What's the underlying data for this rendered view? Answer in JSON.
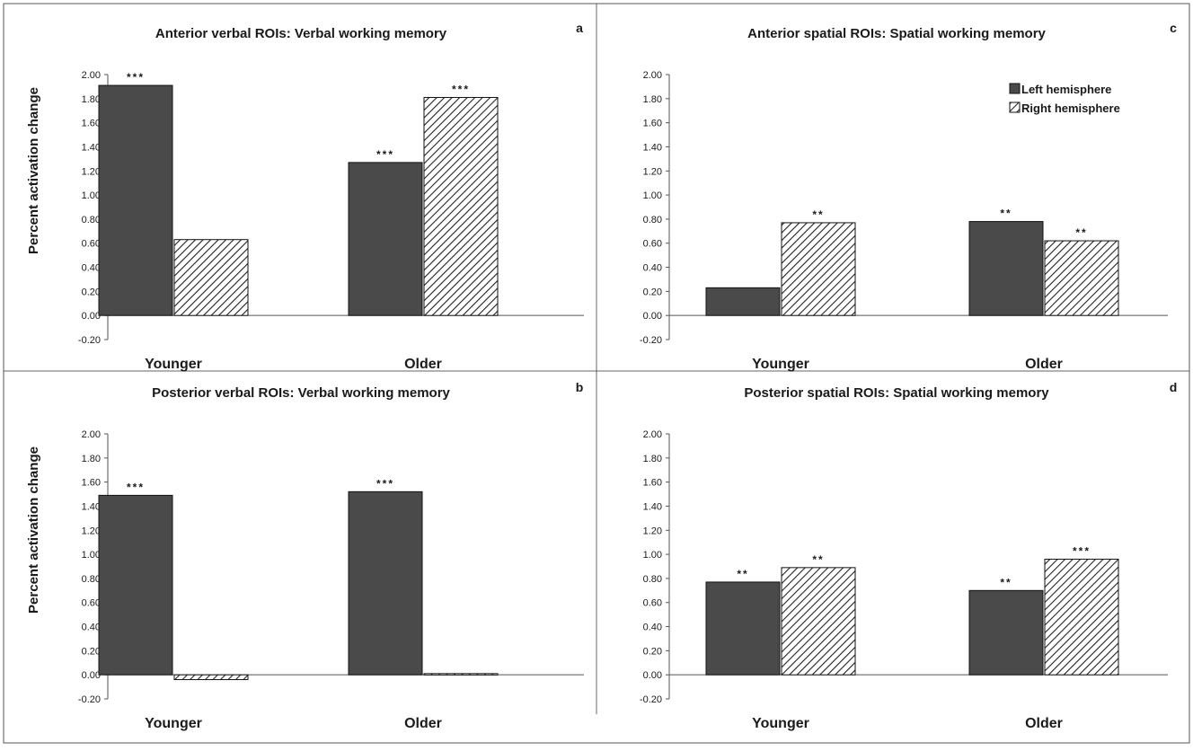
{
  "chart_data": [
    {
      "type": "bar",
      "panel_letter": "a",
      "title": "Anterior verbal ROIs:  Verbal working memory",
      "ylabel": "Percent activation change",
      "categories": [
        "Younger",
        "Older"
      ],
      "series": [
        {
          "name": "Left hemisphere",
          "values": [
            1.91,
            1.27
          ],
          "significance": [
            "***",
            "***"
          ]
        },
        {
          "name": "Right hemisphere",
          "values": [
            0.63,
            1.81
          ],
          "significance": [
            "",
            "***"
          ]
        }
      ],
      "ylim": [
        -0.2,
        2.0
      ],
      "yticks": [
        "2.00",
        "1.80",
        "1.60",
        "1.40",
        "1.20",
        "1.00",
        "0.80",
        "0.60",
        "0.40",
        "0.20",
        "0.00",
        "-0.20"
      ],
      "legend": false
    },
    {
      "type": "bar",
      "panel_letter": "c",
      "title": "Anterior spatial ROIs:  Spatial working memory",
      "ylabel": "",
      "categories": [
        "Younger",
        "Older"
      ],
      "series": [
        {
          "name": "Left hemisphere",
          "values": [
            0.23,
            0.78
          ],
          "significance": [
            "",
            "**"
          ]
        },
        {
          "name": "Right hemisphere",
          "values": [
            0.77,
            0.62
          ],
          "significance": [
            "**",
            "**"
          ]
        }
      ],
      "ylim": [
        -0.2,
        2.0
      ],
      "yticks": [
        "2.00",
        "1.80",
        "1.60",
        "1.40",
        "1.20",
        "1.00",
        "0.80",
        "0.60",
        "0.40",
        "0.20",
        "0.00",
        "-0.20"
      ],
      "legend": true,
      "legend_position": "top-right"
    },
    {
      "type": "bar",
      "panel_letter": "b",
      "title": "Posterior verbal ROIs:  Verbal working memory",
      "ylabel": "Percent activation change",
      "categories": [
        "Younger",
        "Older"
      ],
      "series": [
        {
          "name": "Left hemisphere",
          "values": [
            1.49,
            1.52
          ],
          "significance": [
            "***",
            "***"
          ]
        },
        {
          "name": "Right hemisphere",
          "values": [
            -0.04,
            0.01
          ],
          "significance": [
            "",
            ""
          ]
        }
      ],
      "ylim": [
        -0.2,
        2.0
      ],
      "yticks": [
        "2.00",
        "1.80",
        "1.60",
        "1.40",
        "1.20",
        "1.00",
        "0.80",
        "0.60",
        "0.40",
        "0.20",
        "0.00",
        "-0.20"
      ],
      "legend": false
    },
    {
      "type": "bar",
      "panel_letter": "d",
      "title": "Posterior spatial ROIs:  Spatial working memory",
      "ylabel": "",
      "categories": [
        "Younger",
        "Older"
      ],
      "series": [
        {
          "name": "Left hemisphere",
          "values": [
            0.77,
            0.7
          ],
          "significance": [
            "**",
            "**"
          ]
        },
        {
          "name": "Right hemisphere",
          "values": [
            0.89,
            0.96
          ],
          "significance": [
            "**",
            "***"
          ]
        }
      ],
      "ylim": [
        -0.2,
        2.0
      ],
      "yticks": [
        "2.00",
        "1.80",
        "1.60",
        "1.40",
        "1.20",
        "1.00",
        "0.80",
        "0.60",
        "0.40",
        "0.20",
        "0.00",
        "-0.20"
      ],
      "legend": false
    }
  ],
  "legend": {
    "items": [
      "Left hemisphere",
      "Right hemisphere"
    ]
  },
  "colors": {
    "left": "#4a4a4a",
    "right_bg": "#ffffff",
    "right_hatch": "#222222",
    "axis": "#555555",
    "divider": "#666666"
  }
}
